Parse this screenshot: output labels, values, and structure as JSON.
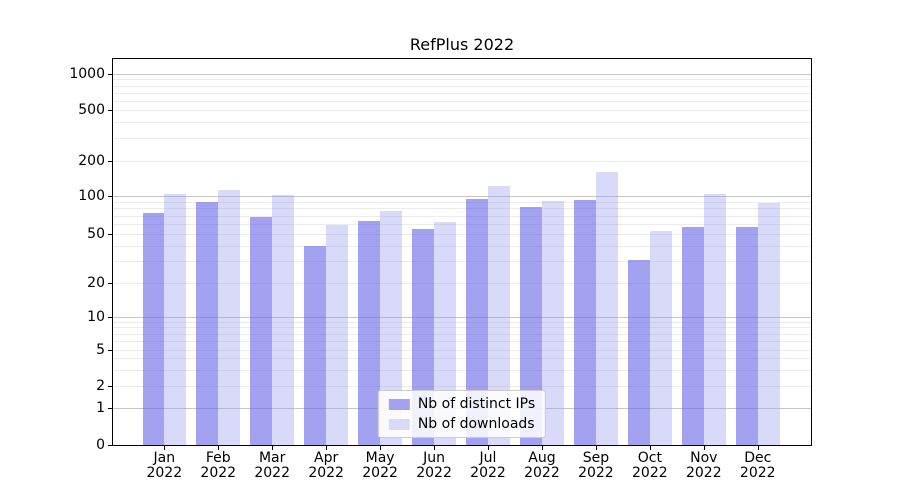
{
  "chart_data": {
    "type": "bar",
    "title": "RefPlus 2022",
    "categories": [
      "Jan",
      "Feb",
      "Mar",
      "Apr",
      "May",
      "Jun",
      "Jul",
      "Aug",
      "Sep",
      "Oct",
      "Nov",
      "Dec"
    ],
    "x_year_label": "2022",
    "series": [
      {
        "name": "Nb of distinct IPs",
        "color": "rgba(100,100,230,0.6)",
        "legend_color": "#a2a2f0",
        "values": [
          74,
          90,
          68,
          40,
          64,
          55,
          95,
          82,
          94,
          31,
          57,
          57
        ]
      },
      {
        "name": "Nb of downloads",
        "color": "rgba(155,155,240,0.38)",
        "legend_color": "#d9d9f9",
        "values": [
          105,
          114,
          102,
          59,
          77,
          62,
          122,
          91,
          160,
          53,
          104,
          89
        ]
      }
    ],
    "yticks": [
      1000,
      500,
      200,
      100,
      50,
      20,
      10,
      5,
      2,
      1,
      0
    ],
    "ylim": [
      0,
      1300
    ],
    "yscale": "symlog",
    "xlabel": "",
    "ylabel": "",
    "grid": true,
    "legend_position": "lower center"
  },
  "colors": {
    "major_grid": "#c6c6c6",
    "minor_grid": "#ececec",
    "spine": "#000000",
    "text": "#000000",
    "legend_border": "#cccccc",
    "legend_background": "rgba(255,255,255,0.85)"
  }
}
